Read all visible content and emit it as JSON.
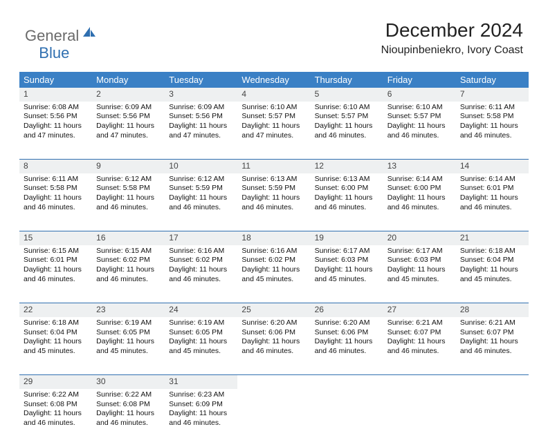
{
  "logo": {
    "general": "General",
    "blue": "Blue",
    "icon_color": "#2f6fb0"
  },
  "title": "December 2024",
  "location": "Nioupinbeniekro, Ivory Coast",
  "colors": {
    "header_bg": "#3a80c5",
    "header_text": "#ffffff",
    "daynum_bg": "#eef0f1",
    "border": "#2f6fb0",
    "logo_gray": "#6a6a6a",
    "logo_blue": "#2f6fb0"
  },
  "weekdays": [
    "Sunday",
    "Monday",
    "Tuesday",
    "Wednesday",
    "Thursday",
    "Friday",
    "Saturday"
  ],
  "weeks": [
    [
      {
        "n": "1",
        "sr": "6:08 AM",
        "ss": "5:56 PM",
        "dl": "11 hours and 47 minutes."
      },
      {
        "n": "2",
        "sr": "6:09 AM",
        "ss": "5:56 PM",
        "dl": "11 hours and 47 minutes."
      },
      {
        "n": "3",
        "sr": "6:09 AM",
        "ss": "5:56 PM",
        "dl": "11 hours and 47 minutes."
      },
      {
        "n": "4",
        "sr": "6:10 AM",
        "ss": "5:57 PM",
        "dl": "11 hours and 47 minutes."
      },
      {
        "n": "5",
        "sr": "6:10 AM",
        "ss": "5:57 PM",
        "dl": "11 hours and 46 minutes."
      },
      {
        "n": "6",
        "sr": "6:10 AM",
        "ss": "5:57 PM",
        "dl": "11 hours and 46 minutes."
      },
      {
        "n": "7",
        "sr": "6:11 AM",
        "ss": "5:58 PM",
        "dl": "11 hours and 46 minutes."
      }
    ],
    [
      {
        "n": "8",
        "sr": "6:11 AM",
        "ss": "5:58 PM",
        "dl": "11 hours and 46 minutes."
      },
      {
        "n": "9",
        "sr": "6:12 AM",
        "ss": "5:58 PM",
        "dl": "11 hours and 46 minutes."
      },
      {
        "n": "10",
        "sr": "6:12 AM",
        "ss": "5:59 PM",
        "dl": "11 hours and 46 minutes."
      },
      {
        "n": "11",
        "sr": "6:13 AM",
        "ss": "5:59 PM",
        "dl": "11 hours and 46 minutes."
      },
      {
        "n": "12",
        "sr": "6:13 AM",
        "ss": "6:00 PM",
        "dl": "11 hours and 46 minutes."
      },
      {
        "n": "13",
        "sr": "6:14 AM",
        "ss": "6:00 PM",
        "dl": "11 hours and 46 minutes."
      },
      {
        "n": "14",
        "sr": "6:14 AM",
        "ss": "6:01 PM",
        "dl": "11 hours and 46 minutes."
      }
    ],
    [
      {
        "n": "15",
        "sr": "6:15 AM",
        "ss": "6:01 PM",
        "dl": "11 hours and 46 minutes."
      },
      {
        "n": "16",
        "sr": "6:15 AM",
        "ss": "6:02 PM",
        "dl": "11 hours and 46 minutes."
      },
      {
        "n": "17",
        "sr": "6:16 AM",
        "ss": "6:02 PM",
        "dl": "11 hours and 46 minutes."
      },
      {
        "n": "18",
        "sr": "6:16 AM",
        "ss": "6:02 PM",
        "dl": "11 hours and 45 minutes."
      },
      {
        "n": "19",
        "sr": "6:17 AM",
        "ss": "6:03 PM",
        "dl": "11 hours and 45 minutes."
      },
      {
        "n": "20",
        "sr": "6:17 AM",
        "ss": "6:03 PM",
        "dl": "11 hours and 45 minutes."
      },
      {
        "n": "21",
        "sr": "6:18 AM",
        "ss": "6:04 PM",
        "dl": "11 hours and 45 minutes."
      }
    ],
    [
      {
        "n": "22",
        "sr": "6:18 AM",
        "ss": "6:04 PM",
        "dl": "11 hours and 45 minutes."
      },
      {
        "n": "23",
        "sr": "6:19 AM",
        "ss": "6:05 PM",
        "dl": "11 hours and 45 minutes."
      },
      {
        "n": "24",
        "sr": "6:19 AM",
        "ss": "6:05 PM",
        "dl": "11 hours and 45 minutes."
      },
      {
        "n": "25",
        "sr": "6:20 AM",
        "ss": "6:06 PM",
        "dl": "11 hours and 46 minutes."
      },
      {
        "n": "26",
        "sr": "6:20 AM",
        "ss": "6:06 PM",
        "dl": "11 hours and 46 minutes."
      },
      {
        "n": "27",
        "sr": "6:21 AM",
        "ss": "6:07 PM",
        "dl": "11 hours and 46 minutes."
      },
      {
        "n": "28",
        "sr": "6:21 AM",
        "ss": "6:07 PM",
        "dl": "11 hours and 46 minutes."
      }
    ],
    [
      {
        "n": "29",
        "sr": "6:22 AM",
        "ss": "6:08 PM",
        "dl": "11 hours and 46 minutes."
      },
      {
        "n": "30",
        "sr": "6:22 AM",
        "ss": "6:08 PM",
        "dl": "11 hours and 46 minutes."
      },
      {
        "n": "31",
        "sr": "6:23 AM",
        "ss": "6:09 PM",
        "dl": "11 hours and 46 minutes."
      },
      null,
      null,
      null,
      null
    ]
  ],
  "labels": {
    "sunrise": "Sunrise:",
    "sunset": "Sunset:",
    "daylight": "Daylight:"
  }
}
